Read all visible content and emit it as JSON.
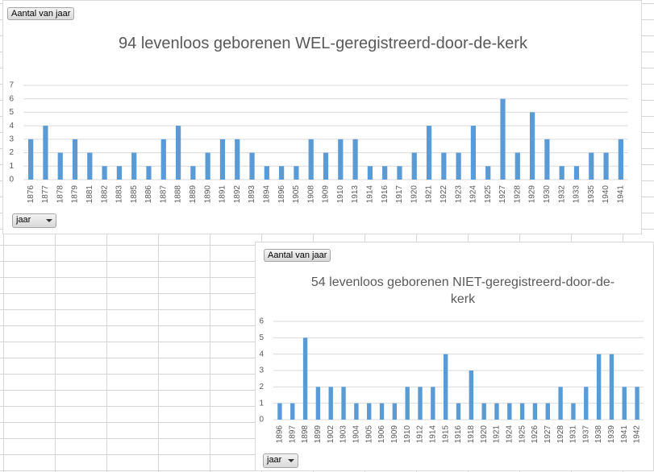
{
  "chart_data": [
    {
      "type": "bar",
      "title": "94 levenloos geborenen WEL-geregistreerd-door-de-kerk",
      "value_button": "Aantal van jaar",
      "axis_button": "jaar",
      "categories": [
        "1876",
        "1877",
        "1878",
        "1879",
        "1881",
        "1882",
        "1883",
        "1885",
        "1886",
        "1887",
        "1888",
        "1889",
        "1890",
        "1891",
        "1892",
        "1893",
        "1894",
        "1896",
        "1905",
        "1908",
        "1909",
        "1910",
        "1913",
        "1914",
        "1916",
        "1917",
        "1920",
        "1921",
        "1922",
        "1923",
        "1924",
        "1925",
        "1927",
        "1928",
        "1929",
        "1930",
        "1932",
        "1933",
        "1935",
        "1940",
        "1941"
      ],
      "values": [
        3,
        4,
        2,
        3,
        2,
        1,
        1,
        2,
        1,
        3,
        4,
        1,
        2,
        3,
        3,
        2,
        1,
        1,
        1,
        3,
        2,
        3,
        3,
        1,
        1,
        1,
        2,
        4,
        2,
        2,
        4,
        1,
        6,
        2,
        5,
        3,
        1,
        1,
        2,
        2,
        3
      ],
      "color": "#5b9bd5",
      "ylim": [
        0,
        7
      ],
      "yticks": [
        0,
        1,
        2,
        3,
        4,
        5,
        6,
        7
      ],
      "grid": true
    },
    {
      "type": "bar",
      "title": "54 levenloos geborenen NIET-geregistreerd-door-de-kerk",
      "value_button": "Aantal van jaar",
      "axis_button": "jaar",
      "categories": [
        "1896",
        "1897",
        "1898",
        "1899",
        "1902",
        "1903",
        "1904",
        "1905",
        "1906",
        "1909",
        "1910",
        "1912",
        "1914",
        "1915",
        "1916",
        "1918",
        "1920",
        "1921",
        "1924",
        "1925",
        "1926",
        "1927",
        "1928",
        "1931",
        "1937",
        "1938",
        "1939",
        "1941",
        "1942"
      ],
      "values": [
        1,
        1,
        5,
        2,
        2,
        2,
        1,
        1,
        1,
        1,
        2,
        2,
        2,
        4,
        1,
        3,
        1,
        1,
        1,
        1,
        1,
        1,
        2,
        1,
        2,
        4,
        4,
        2,
        2
      ],
      "color": "#5b9bd5",
      "ylim": [
        0,
        6
      ],
      "yticks": [
        0,
        1,
        2,
        3,
        4,
        5,
        6
      ],
      "grid": true
    }
  ]
}
